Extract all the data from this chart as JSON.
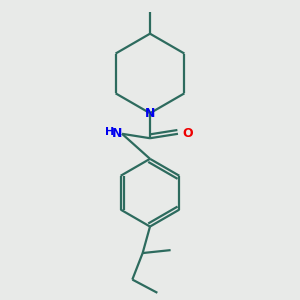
{
  "background_color": "#e8eae8",
  "bond_color": "#2d6b5e",
  "N_color": "#0000ee",
  "O_color": "#ee0000",
  "line_width": 1.6,
  "figsize": [
    3.0,
    3.0
  ],
  "dpi": 100,
  "xlim": [
    0,
    10
  ],
  "ylim": [
    0,
    10
  ]
}
